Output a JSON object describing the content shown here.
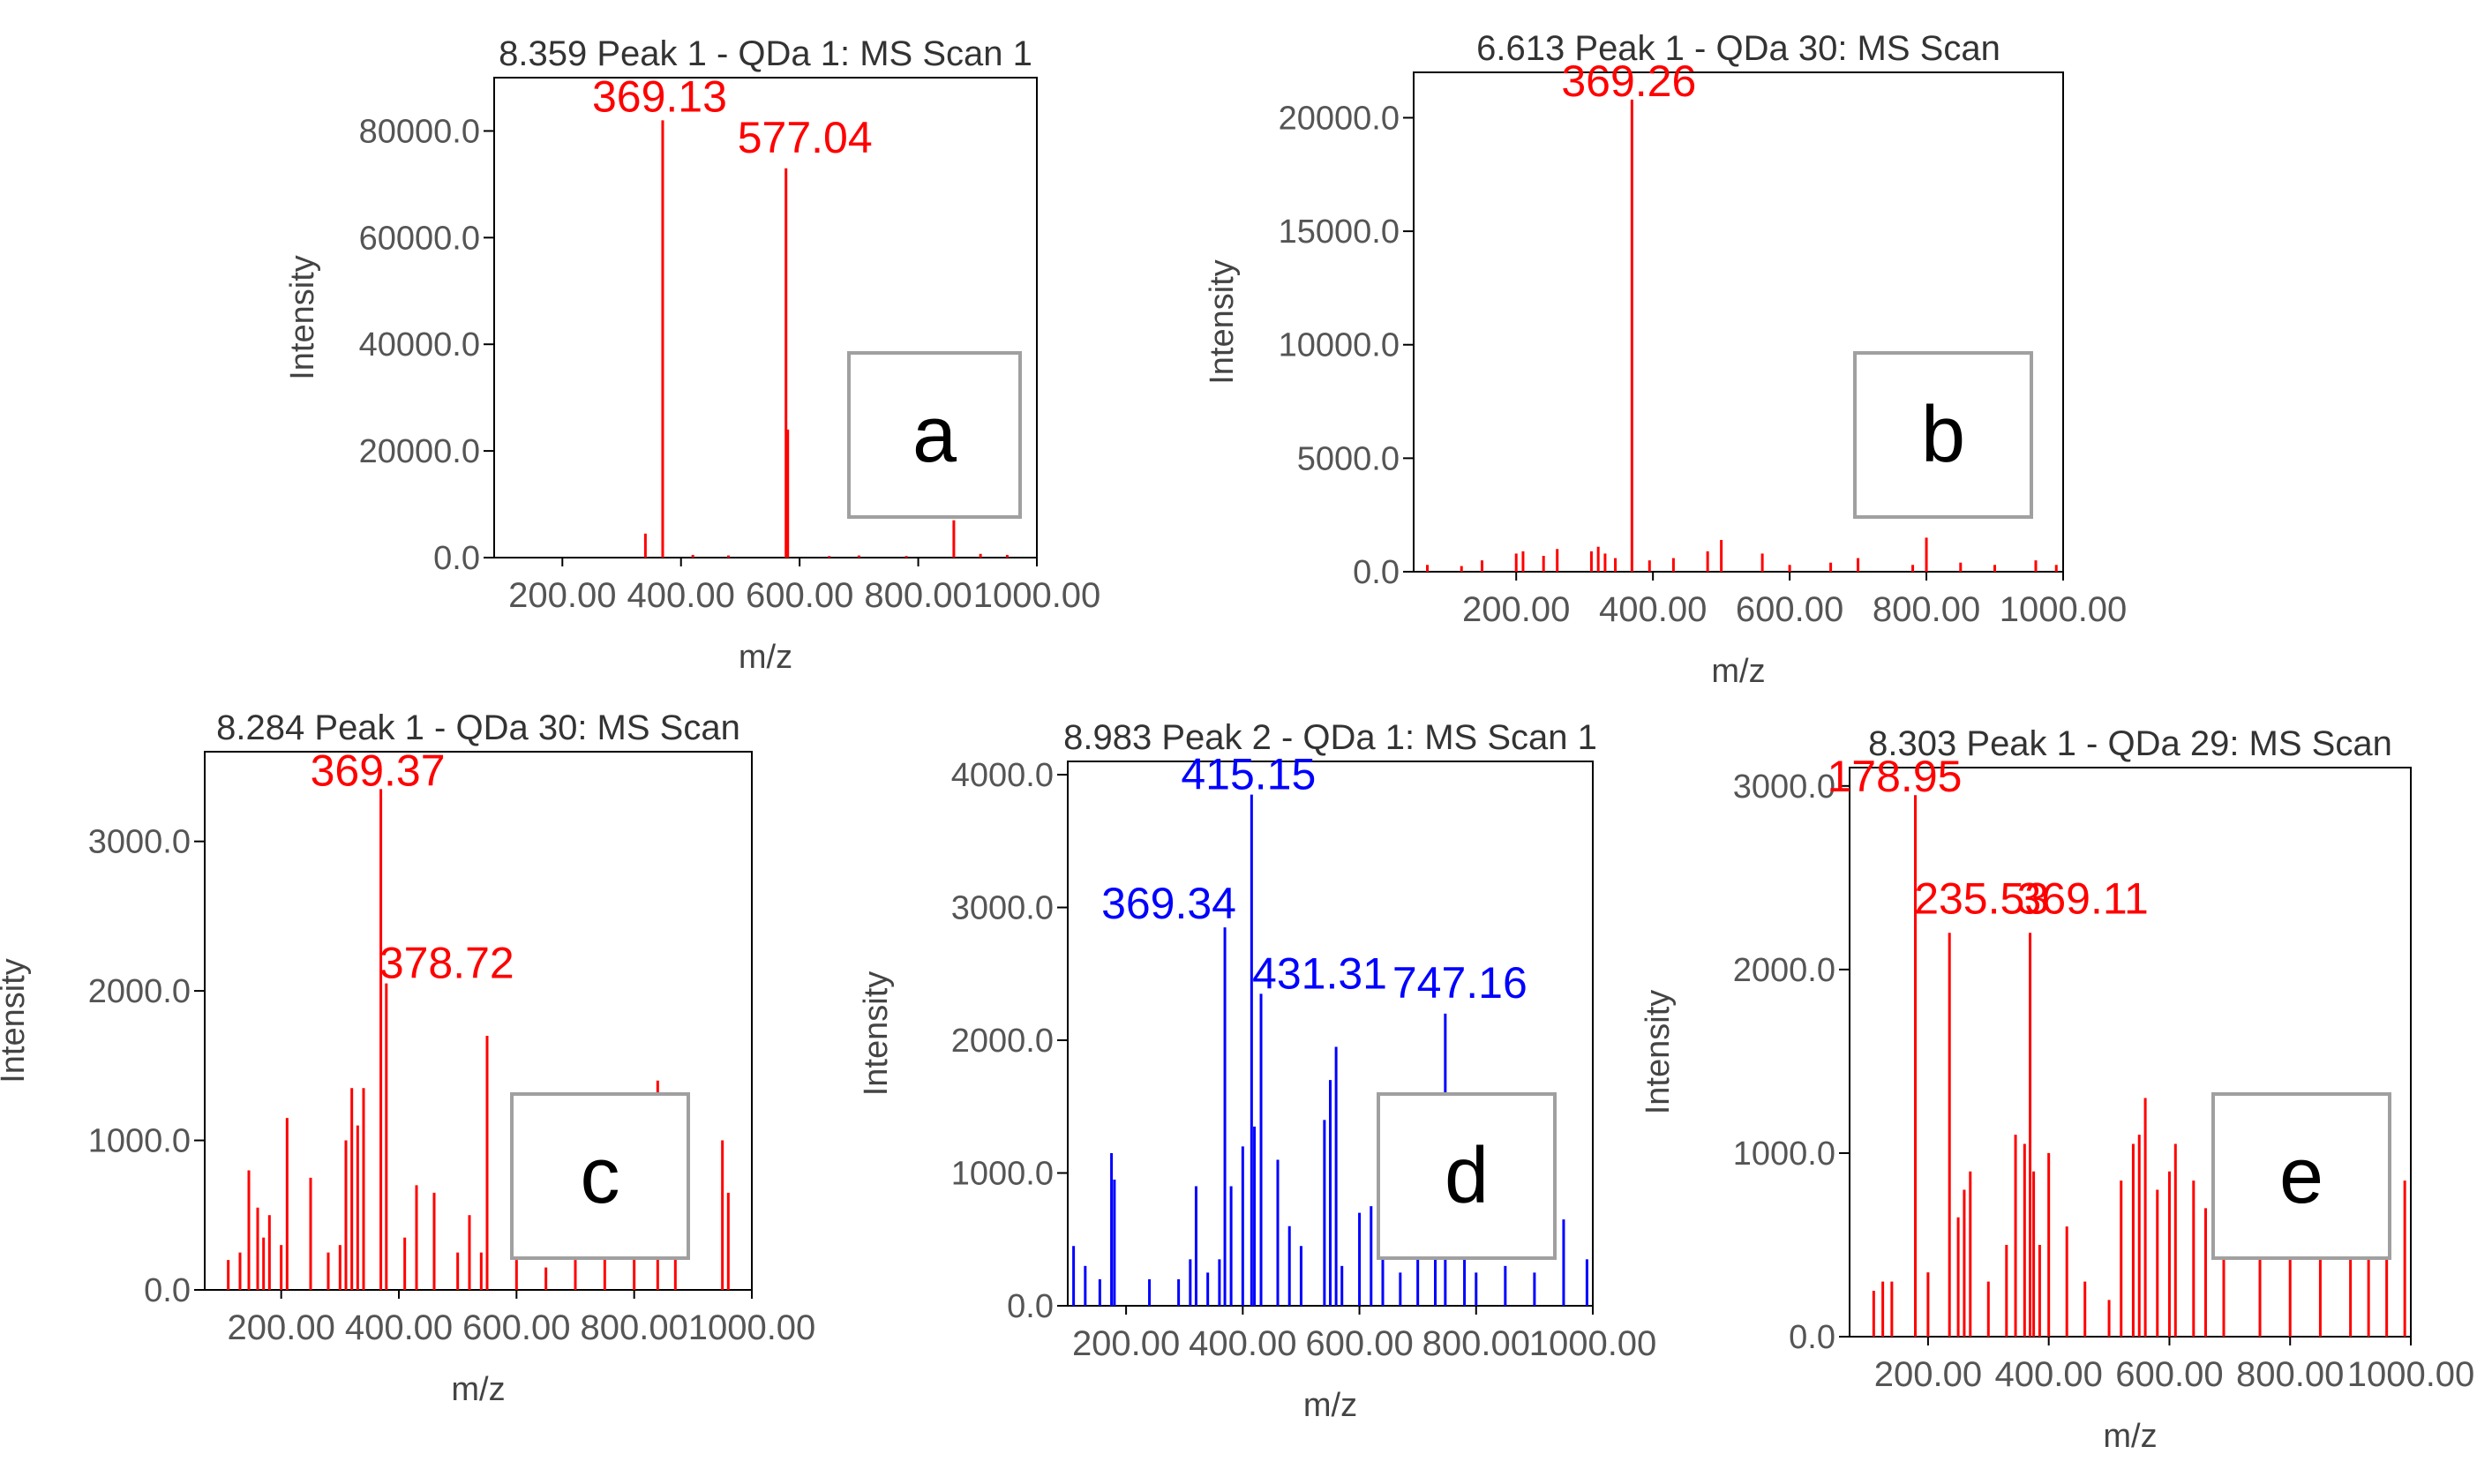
{
  "chart_data": [
    {
      "id": "a",
      "type": "bar",
      "title": "8.359 Peak 1 - QDa 1: MS Scan 1",
      "xlabel": "m/z",
      "ylabel": "Intensity",
      "panel_label": "a",
      "color": "#ff0000",
      "xlim": [
        85,
        1000
      ],
      "ylim": [
        0,
        90000
      ],
      "xticks": [
        200,
        400,
        600,
        800,
        1000
      ],
      "xtick_labels": [
        "200.00",
        "400.00",
        "600.00",
        "800.00",
        "1000.00"
      ],
      "yticks": [
        0,
        20000,
        40000,
        60000,
        80000
      ],
      "ytick_labels": [
        "0.0",
        "20000.0",
        "40000.0",
        "60000.0",
        "80000.0"
      ],
      "peaks": [
        [
          340,
          4500
        ],
        [
          369.13,
          82000
        ],
        [
          420,
          500
        ],
        [
          480,
          400
        ],
        [
          577.04,
          73000
        ],
        [
          580,
          24000
        ],
        [
          650,
          300
        ],
        [
          700,
          400
        ],
        [
          780,
          300
        ],
        [
          860,
          7000
        ],
        [
          905,
          700
        ],
        [
          950,
          500
        ]
      ],
      "annotations": [
        {
          "x": 369.13,
          "y": 82000,
          "text": "369.13"
        },
        {
          "x": 577.04,
          "y": 73000,
          "text": "577.04"
        }
      ]
    },
    {
      "id": "b",
      "type": "bar",
      "title": "6.613 Peak 1 - QDa 30: MS Scan",
      "xlabel": "m/z",
      "ylabel": "Intensity",
      "panel_label": "b",
      "color": "#ff0000",
      "xlim": [
        50,
        1000
      ],
      "ylim": [
        0,
        22000
      ],
      "xticks": [
        200,
        400,
        600,
        800,
        1000
      ],
      "xtick_labels": [
        "200.00",
        "400.00",
        "600.00",
        "800.00",
        "1000.00"
      ],
      "yticks": [
        0,
        5000,
        10000,
        15000,
        20000
      ],
      "ytick_labels": [
        "0.0",
        "5000.0",
        "10000.0",
        "15000.0",
        "20000.0"
      ],
      "peaks": [
        [
          70,
          300
        ],
        [
          120,
          250
        ],
        [
          150,
          500
        ],
        [
          200,
          800
        ],
        [
          210,
          900
        ],
        [
          240,
          700
        ],
        [
          260,
          1000
        ],
        [
          310,
          900
        ],
        [
          320,
          1100
        ],
        [
          330,
          800
        ],
        [
          345,
          600
        ],
        [
          369.26,
          20800
        ],
        [
          395,
          500
        ],
        [
          430,
          600
        ],
        [
          480,
          900
        ],
        [
          500,
          1400
        ],
        [
          560,
          800
        ],
        [
          600,
          300
        ],
        [
          660,
          400
        ],
        [
          700,
          600
        ],
        [
          780,
          300
        ],
        [
          800,
          1500
        ],
        [
          850,
          400
        ],
        [
          900,
          300
        ],
        [
          960,
          500
        ],
        [
          990,
          300
        ]
      ],
      "annotations": [
        {
          "x": 369.26,
          "y": 20800,
          "text": "369.26"
        }
      ]
    },
    {
      "id": "c",
      "type": "bar",
      "title": "8.284 Peak 1 - QDa 30: MS Scan",
      "xlabel": "m/z",
      "ylabel": "Intensity",
      "panel_label": "c",
      "color": "#ff0000",
      "xlim": [
        70,
        1000
      ],
      "ylim": [
        0,
        3600
      ],
      "xticks": [
        200,
        400,
        600,
        800,
        1000
      ],
      "xtick_labels": [
        "200.00",
        "400.00",
        "600.00",
        "800.00",
        "1000.00"
      ],
      "yticks": [
        0,
        1000,
        2000,
        3000
      ],
      "ytick_labels": [
        "0.0",
        "1000.0",
        "2000.0",
        "3000.0"
      ],
      "peaks": [
        [
          110,
          200
        ],
        [
          130,
          250
        ],
        [
          145,
          800
        ],
        [
          160,
          550
        ],
        [
          170,
          350
        ],
        [
          180,
          500
        ],
        [
          200,
          300
        ],
        [
          210,
          1150
        ],
        [
          250,
          750
        ],
        [
          280,
          250
        ],
        [
          300,
          300
        ],
        [
          310,
          1000
        ],
        [
          320,
          1350
        ],
        [
          330,
          1100
        ],
        [
          340,
          1350
        ],
        [
          369.37,
          3350
        ],
        [
          378.72,
          2050
        ],
        [
          410,
          350
        ],
        [
          430,
          700
        ],
        [
          460,
          650
        ],
        [
          500,
          250
        ],
        [
          520,
          500
        ],
        [
          540,
          250
        ],
        [
          550,
          1700
        ],
        [
          600,
          200
        ],
        [
          650,
          150
        ],
        [
          700,
          200
        ],
        [
          750,
          250
        ],
        [
          800,
          350
        ],
        [
          840,
          1400
        ],
        [
          870,
          300
        ],
        [
          950,
          1000
        ],
        [
          960,
          650
        ]
      ],
      "annotations": [
        {
          "x": 369.37,
          "y": 3350,
          "text": "369.37"
        },
        {
          "x": 378.72,
          "y": 2050,
          "text": "378.72"
        }
      ]
    },
    {
      "id": "d",
      "type": "bar",
      "title": "8.983 Peak 2 - QDa 1: MS Scan 1",
      "xlabel": "m/z",
      "ylabel": "Intensity",
      "panel_label": "d",
      "color": "#0000ff",
      "xlim": [
        100,
        1000
      ],
      "ylim": [
        0,
        4100
      ],
      "xticks": [
        200,
        400,
        600,
        800,
        1000
      ],
      "xtick_labels": [
        "200.00",
        "400.00",
        "600.00",
        "800.00",
        "1000.00"
      ],
      "yticks": [
        0,
        1000,
        2000,
        3000,
        4000
      ],
      "ytick_labels": [
        "0.0",
        "1000.0",
        "2000.0",
        "3000.0",
        "4000.0"
      ],
      "peaks": [
        [
          110,
          450
        ],
        [
          130,
          300
        ],
        [
          155,
          200
        ],
        [
          175,
          1150
        ],
        [
          180,
          950
        ],
        [
          240,
          200
        ],
        [
          290,
          200
        ],
        [
          310,
          350
        ],
        [
          320,
          900
        ],
        [
          340,
          250
        ],
        [
          360,
          350
        ],
        [
          369.34,
          2850
        ],
        [
          380,
          900
        ],
        [
          400,
          1200
        ],
        [
          415.15,
          3850
        ],
        [
          420,
          1350
        ],
        [
          431.31,
          2350
        ],
        [
          460,
          1100
        ],
        [
          480,
          600
        ],
        [
          500,
          450
        ],
        [
          540,
          1400
        ],
        [
          550,
          1700
        ],
        [
          560,
          1950
        ],
        [
          570,
          300
        ],
        [
          600,
          700
        ],
        [
          620,
          750
        ],
        [
          640,
          500
        ],
        [
          670,
          250
        ],
        [
          700,
          400
        ],
        [
          730,
          350
        ],
        [
          747.16,
          2200
        ],
        [
          780,
          500
        ],
        [
          800,
          250
        ],
        [
          850,
          300
        ],
        [
          900,
          250
        ],
        [
          950,
          650
        ],
        [
          990,
          350
        ]
      ],
      "annotations": [
        {
          "x": 415.15,
          "y": 3850,
          "text": "415.15"
        },
        {
          "x": 369.34,
          "y": 2850,
          "text": "369.34"
        },
        {
          "x": 431.31,
          "y": 2350,
          "text": "431.31"
        },
        {
          "x": 747.16,
          "y": 2200,
          "text": "747.16"
        }
      ]
    },
    {
      "id": "e",
      "type": "bar",
      "title": "8.303 Peak 1 - QDa 29: MS Scan",
      "xlabel": "m/z",
      "ylabel": "Intensity",
      "panel_label": "e",
      "color": "#ff0000",
      "xlim": [
        70,
        1000
      ],
      "ylim": [
        0,
        3100
      ],
      "xticks": [
        200,
        400,
        600,
        800,
        1000
      ],
      "xtick_labels": [
        "200.00",
        "400.00",
        "600.00",
        "800.00",
        "1000.00"
      ],
      "yticks": [
        0,
        1000,
        2000,
        3000
      ],
      "ytick_labels": [
        "0.0",
        "1000.0",
        "2000.0",
        "3000.0"
      ],
      "peaks": [
        [
          110,
          250
        ],
        [
          125,
          300
        ],
        [
          140,
          300
        ],
        [
          178.95,
          2950
        ],
        [
          200,
          350
        ],
        [
          235.53,
          2200
        ],
        [
          250,
          650
        ],
        [
          260,
          800
        ],
        [
          270,
          900
        ],
        [
          300,
          300
        ],
        [
          330,
          500
        ],
        [
          345,
          1100
        ],
        [
          360,
          1050
        ],
        [
          369.11,
          2200
        ],
        [
          375,
          900
        ],
        [
          385,
          500
        ],
        [
          400,
          1000
        ],
        [
          430,
          600
        ],
        [
          460,
          300
        ],
        [
          500,
          200
        ],
        [
          520,
          850
        ],
        [
          540,
          1050
        ],
        [
          550,
          1100
        ],
        [
          560,
          1300
        ],
        [
          580,
          800
        ],
        [
          600,
          900
        ],
        [
          610,
          1050
        ],
        [
          640,
          850
        ],
        [
          660,
          700
        ],
        [
          690,
          500
        ],
        [
          750,
          500
        ],
        [
          800,
          500
        ],
        [
          850,
          500
        ],
        [
          900,
          650
        ],
        [
          930,
          1050
        ],
        [
          960,
          750
        ],
        [
          990,
          850
        ]
      ],
      "annotations": [
        {
          "x": 178.95,
          "y": 2950,
          "text": "178.95"
        },
        {
          "x": 235.53,
          "y": 2200,
          "text": "235.53"
        },
        {
          "x": 369.11,
          "y": 2200,
          "text": "369.11"
        }
      ]
    }
  ]
}
